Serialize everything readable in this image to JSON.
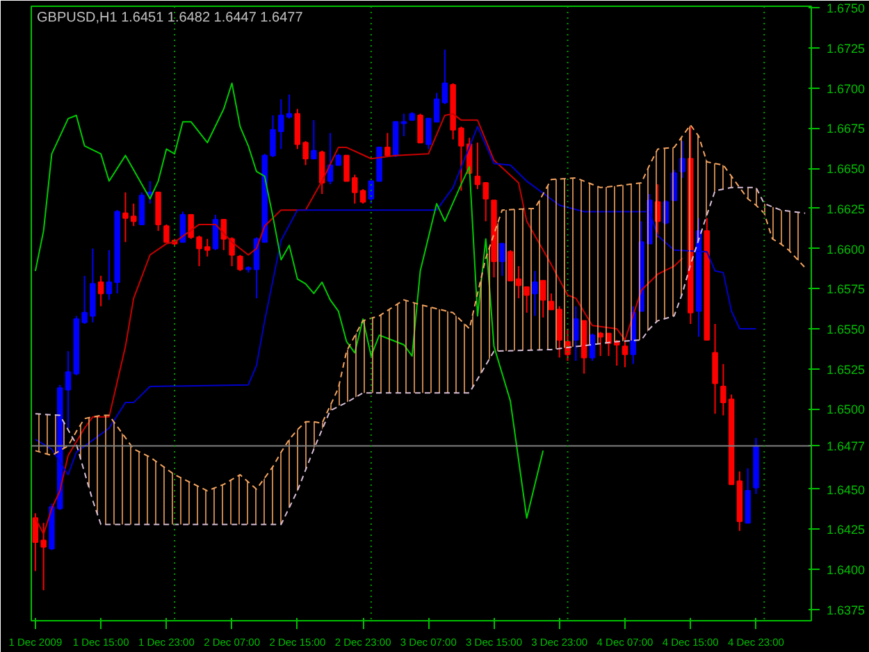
{
  "chart_data": {
    "type": "candlestick",
    "title": "GBPUSD,H1 1.6451 1.6482 1.6447 1.6477",
    "x": [
      "2009-12-01T07:00",
      "2009-12-01T08:00",
      "2009-12-01T09:00",
      "2009-12-01T10:00",
      "2009-12-01T11:00",
      "2009-12-01T12:00",
      "2009-12-01T13:00",
      "2009-12-01T14:00",
      "2009-12-01T15:00",
      "2009-12-01T16:00",
      "2009-12-01T17:00",
      "2009-12-01T18:00",
      "2009-12-01T19:00",
      "2009-12-01T20:00",
      "2009-12-01T21:00",
      "2009-12-01T22:00",
      "2009-12-01T23:00",
      "2009-12-02T00:00",
      "2009-12-02T01:00",
      "2009-12-02T02:00",
      "2009-12-02T03:00",
      "2009-12-02T04:00",
      "2009-12-02T05:00",
      "2009-12-02T06:00",
      "2009-12-02T07:00",
      "2009-12-02T08:00",
      "2009-12-02T09:00",
      "2009-12-02T10:00",
      "2009-12-02T11:00",
      "2009-12-02T12:00",
      "2009-12-02T13:00",
      "2009-12-02T14:00",
      "2009-12-02T15:00",
      "2009-12-02T16:00",
      "2009-12-02T17:00",
      "2009-12-02T18:00",
      "2009-12-02T19:00",
      "2009-12-02T20:00",
      "2009-12-02T21:00",
      "2009-12-02T22:00",
      "2009-12-02T23:00",
      "2009-12-03T00:00",
      "2009-12-03T01:00",
      "2009-12-03T02:00",
      "2009-12-03T03:00",
      "2009-12-03T04:00",
      "2009-12-03T05:00",
      "2009-12-03T06:00",
      "2009-12-03T07:00",
      "2009-12-03T08:00",
      "2009-12-03T09:00",
      "2009-12-03T10:00",
      "2009-12-03T11:00",
      "2009-12-03T12:00",
      "2009-12-03T13:00",
      "2009-12-03T14:00",
      "2009-12-03T15:00",
      "2009-12-03T16:00",
      "2009-12-03T17:00",
      "2009-12-03T18:00",
      "2009-12-03T19:00",
      "2009-12-03T20:00",
      "2009-12-03T21:00",
      "2009-12-03T22:00",
      "2009-12-03T23:00",
      "2009-12-04T00:00",
      "2009-12-04T01:00",
      "2009-12-04T02:00",
      "2009-12-04T03:00",
      "2009-12-04T04:00",
      "2009-12-04T05:00",
      "2009-12-04T06:00",
      "2009-12-04T07:00",
      "2009-12-04T08:00",
      "2009-12-04T09:00",
      "2009-12-04T10:00",
      "2009-12-04T11:00",
      "2009-12-04T12:00",
      "2009-12-04T13:00",
      "2009-12-04T14:00",
      "2009-12-04T15:00",
      "2009-12-04T16:00",
      "2009-12-04T17:00",
      "2009-12-04T18:00",
      "2009-12-04T19:00",
      "2009-12-04T20:00",
      "2009-12-04T21:00",
      "2009-12-04T22:00",
      "2009-12-04T23:00"
    ],
    "ohlc": [
      [
        1.6432,
        1.6435,
        1.6399,
        1.6417
      ],
      [
        1.6418,
        1.6429,
        1.6387,
        1.6414
      ],
      [
        1.6413,
        1.6441,
        1.6412,
        1.6439
      ],
      [
        1.6438,
        1.6515,
        1.6437,
        1.6513
      ],
      [
        1.6512,
        1.6536,
        1.6488,
        1.6523
      ],
      [
        1.6522,
        1.6558,
        1.6521,
        1.6556
      ],
      [
        1.6554,
        1.6583,
        1.6553,
        1.656
      ],
      [
        1.6558,
        1.66,
        1.6554,
        1.6578
      ],
      [
        1.6579,
        1.6583,
        1.6564,
        1.6572
      ],
      [
        1.6572,
        1.6599,
        1.6568,
        1.6579
      ],
      [
        1.6579,
        1.6624,
        1.6572,
        1.6623
      ],
      [
        1.6622,
        1.6635,
        1.6604,
        1.6619
      ],
      [
        1.662,
        1.6628,
        1.6614,
        1.6617
      ],
      [
        1.6615,
        1.6635,
        1.6615,
        1.6633
      ],
      [
        1.6634,
        1.6642,
        1.6628,
        1.6635
      ],
      [
        1.6635,
        1.6635,
        1.6611,
        1.6615
      ],
      [
        1.6614,
        1.6615,
        1.6604,
        1.6604
      ],
      [
        1.6605,
        1.6606,
        1.6602,
        1.6603
      ],
      [
        1.6604,
        1.6623,
        1.6604,
        1.6621
      ],
      [
        1.6621,
        1.6621,
        1.6606,
        1.6607
      ],
      [
        1.6607,
        1.6608,
        1.6589,
        1.66
      ],
      [
        1.6601,
        1.6606,
        1.6595,
        1.6599
      ],
      [
        1.66,
        1.6621,
        1.6599,
        1.6618
      ],
      [
        1.6618,
        1.6618,
        1.6599,
        1.6606
      ],
      [
        1.6606,
        1.6607,
        1.6589,
        1.6596
      ],
      [
        1.6595,
        1.6596,
        1.6586,
        1.6587
      ],
      [
        1.6587,
        1.6589,
        1.6585,
        1.6588
      ],
      [
        1.6587,
        1.6607,
        1.6569,
        1.6606
      ],
      [
        1.6604,
        1.6659,
        1.6604,
        1.6658
      ],
      [
        1.6658,
        1.6683,
        1.6657,
        1.6674
      ],
      [
        1.6673,
        1.6693,
        1.6662,
        1.6683
      ],
      [
        1.6682,
        1.6696,
        1.6681,
        1.6684
      ],
      [
        1.6684,
        1.6687,
        1.6662,
        1.6665
      ],
      [
        1.6666,
        1.6667,
        1.6652,
        1.6656
      ],
      [
        1.6656,
        1.668,
        1.6656,
        1.6661
      ],
      [
        1.666,
        1.6661,
        1.6634,
        1.6641
      ],
      [
        1.6642,
        1.6672,
        1.664,
        1.6652
      ],
      [
        1.6652,
        1.6659,
        1.6652,
        1.6658
      ],
      [
        1.6658,
        1.6658,
        1.6642,
        1.6642
      ],
      [
        1.6644,
        1.6646,
        1.6628,
        1.6635
      ],
      [
        1.6636,
        1.6637,
        1.6628,
        1.6629
      ],
      [
        1.6631,
        1.6642,
        1.6628,
        1.6642
      ],
      [
        1.6642,
        1.6663,
        1.6642,
        1.6663
      ],
      [
        1.6663,
        1.6672,
        1.6657,
        1.6658
      ],
      [
        1.6658,
        1.6679,
        1.6657,
        1.6679
      ],
      [
        1.6678,
        1.6684,
        1.667,
        1.6679
      ],
      [
        1.668,
        1.6685,
        1.668,
        1.6684
      ],
      [
        1.6683,
        1.6684,
        1.6666,
        1.6666
      ],
      [
        1.6665,
        1.6681,
        1.6662,
        1.6681
      ],
      [
        1.6679,
        1.6697,
        1.6679,
        1.6693
      ],
      [
        1.6691,
        1.6724,
        1.669,
        1.6703
      ],
      [
        1.6702,
        1.6703,
        1.6668,
        1.6674
      ],
      [
        1.6675,
        1.6676,
        1.6636,
        1.6664
      ],
      [
        1.6665,
        1.6669,
        1.6646,
        1.6647
      ],
      [
        1.6645,
        1.6666,
        1.6637,
        1.664
      ],
      [
        1.6641,
        1.6641,
        1.6617,
        1.6631
      ],
      [
        1.663,
        1.663,
        1.6582,
        1.6592
      ],
      [
        1.6592,
        1.6603,
        1.6583,
        1.6603
      ],
      [
        1.6598,
        1.6599,
        1.658,
        1.658
      ],
      [
        1.6581,
        1.6589,
        1.6569,
        1.6577
      ],
      [
        1.6576,
        1.6576,
        1.656,
        1.6571
      ],
      [
        1.6572,
        1.6586,
        1.6558,
        1.6579
      ],
      [
        1.658,
        1.658,
        1.6557,
        1.6568
      ],
      [
        1.6567,
        1.6572,
        1.6562,
        1.6562
      ],
      [
        1.6562,
        1.6564,
        1.6532,
        1.6543
      ],
      [
        1.6542,
        1.655,
        1.653,
        1.6534
      ],
      [
        1.6543,
        1.6564,
        1.653,
        1.6556
      ],
      [
        1.6555,
        1.6555,
        1.6522,
        1.6532
      ],
      [
        1.6532,
        1.6547,
        1.653,
        1.6546
      ],
      [
        1.6547,
        1.6548,
        1.6533,
        1.6545
      ],
      [
        1.6547,
        1.6547,
        1.6533,
        1.6541
      ],
      [
        1.6542,
        1.6543,
        1.6527,
        1.654
      ],
      [
        1.6539,
        1.6544,
        1.6526,
        1.6534
      ],
      [
        1.6534,
        1.6564,
        1.6528,
        1.656
      ],
      [
        1.6561,
        1.6617,
        1.6561,
        1.6604
      ],
      [
        1.6603,
        1.6634,
        1.6603,
        1.663
      ],
      [
        1.6629,
        1.664,
        1.6607,
        1.6617
      ],
      [
        1.6616,
        1.663,
        1.6615,
        1.6629
      ],
      [
        1.663,
        1.6649,
        1.663,
        1.6647
      ],
      [
        1.6648,
        1.6667,
        1.6644,
        1.6656
      ],
      [
        1.6656,
        1.6676,
        1.6553,
        1.656
      ],
      [
        1.6561,
        1.6619,
        1.6545,
        1.6611
      ],
      [
        1.6611,
        1.6619,
        1.6543,
        1.6543
      ],
      [
        1.6535,
        1.6553,
        1.6497,
        1.6516
      ],
      [
        1.6514,
        1.6528,
        1.6496,
        1.6504
      ],
      [
        1.6506,
        1.6509,
        1.6453,
        1.6453
      ],
      [
        1.6455,
        1.6461,
        1.6424,
        1.643
      ],
      [
        1.6429,
        1.6463,
        1.6429,
        1.6449
      ],
      [
        1.6451,
        1.6482,
        1.6447,
        1.6477
      ]
    ],
    "colors": [
      "#ff0000",
      "#ff0000",
      "#0000ff",
      "#0000ff",
      "#0000ff",
      "#0000ff",
      "#0000ff",
      "#0000ff",
      "#ff0000",
      "#0000ff",
      "#0000ff",
      "#ff0000",
      "#ff0000",
      "#0000ff",
      "#0000ff",
      "#ff0000",
      "#ff0000",
      "#ff0000",
      "#0000ff",
      "#ff0000",
      "#ff0000",
      "#ff0000",
      "#0000ff",
      "#ff0000",
      "#ff0000",
      "#ff0000",
      "#0000ff",
      "#0000ff",
      "#0000ff",
      "#0000ff",
      "#0000ff",
      "#0000ff",
      "#ff0000",
      "#ff0000",
      "#0000ff",
      "#ff0000",
      "#0000ff",
      "#0000ff",
      "#ff0000",
      "#ff0000",
      "#ff0000",
      "#0000ff",
      "#0000ff",
      "#ff0000",
      "#0000ff",
      "#0000ff",
      "#0000ff",
      "#ff0000",
      "#0000ff",
      "#0000ff",
      "#0000ff",
      "#ff0000",
      "#ff0000",
      "#ff0000",
      "#ff0000",
      "#ff0000",
      "#ff0000",
      "#0000ff",
      "#ff0000",
      "#ff0000",
      "#ff0000",
      "#0000ff",
      "#ff0000",
      "#ff0000",
      "#ff0000",
      "#ff0000",
      "#0000ff",
      "#ff0000",
      "#0000ff",
      "#ff0000",
      "#ff0000",
      "#ff0000",
      "#ff0000",
      "#0000ff",
      "#0000ff",
      "#0000ff",
      "#ff0000",
      "#0000ff",
      "#0000ff",
      "#0000ff",
      "#ff0000",
      "#0000ff",
      "#ff0000",
      "#ff0000",
      "#ff0000",
      "#ff0000",
      "#ff0000",
      "#0000ff",
      "#0000ff"
    ],
    "series": [
      {
        "type": "line",
        "color": "#cc0000",
        "line_style": "solid",
        "x": [
          "2009-12-01T07:00",
          "2009-12-01T08:00",
          "2009-12-01T09:00",
          "2009-12-01T10:00",
          "2009-12-01T11:00",
          "2009-12-01T13:00",
          "2009-12-01T14:00",
          "2009-12-01T16:00",
          "2009-12-01T18:00",
          "2009-12-01T19:00",
          "2009-12-01T21:00",
          "2009-12-01T23:00",
          "2009-12-02T00:00",
          "2009-12-02T03:00",
          "2009-12-02T05:00",
          "2009-12-02T07:00",
          "2009-12-02T08:00",
          "2009-12-02T09:00",
          "2009-12-02T10:00",
          "2009-12-02T11:00",
          "2009-12-02T13:00",
          "2009-12-02T16:00",
          "2009-12-02T18:00",
          "2009-12-02T20:00",
          "2009-12-02T21:00",
          "2009-12-03T00:00",
          "2009-12-03T03:00",
          "2009-12-03T07:00",
          "2009-12-03T09:00",
          "2009-12-03T10:00",
          "2009-12-03T11:00",
          "2009-12-03T13:00",
          "2009-12-03T15:00",
          "2009-12-03T18:00",
          "2009-12-03T19:00",
          "2009-12-03T22:00",
          "2009-12-04T00:00",
          "2009-12-04T01:00",
          "2009-12-04T03:00",
          "2009-12-04T06:00",
          "2009-12-04T07:00",
          "2009-12-04T09:00",
          "2009-12-04T11:00",
          "2009-12-04T13:00",
          "2009-12-04T14:00"
        ],
        "values": [
          1.6432,
          1.6422,
          1.6438,
          1.6449,
          1.6471,
          1.6488,
          1.6495,
          1.6495,
          1.6539,
          1.6569,
          1.6596,
          1.6603,
          1.6604,
          1.6615,
          1.6615,
          1.6604,
          1.66,
          1.6596,
          1.66,
          1.6614,
          1.6624,
          1.6624,
          1.6642,
          1.6663,
          1.6663,
          1.6656,
          1.6658,
          1.6659,
          1.6683,
          1.6684,
          1.668,
          1.668,
          1.6655,
          1.6641,
          1.6617,
          1.659,
          1.6571,
          1.6569,
          1.6552,
          1.655,
          1.6543,
          1.6574,
          1.6584,
          1.6589,
          1.6594
        ]
      },
      {
        "type": "line",
        "color": "#0000cc",
        "line_style": "solid",
        "x": [
          "2009-12-01T07:00",
          "2009-12-01T09:00",
          "2009-12-01T11:00",
          "2009-12-01T12:00",
          "2009-12-01T16:00",
          "2009-12-01T18:00",
          "2009-12-01T19:00",
          "2009-12-01T21:00",
          "2009-12-02T09:00",
          "2009-12-02T10:00",
          "2009-12-02T11:00",
          "2009-12-02T13:00",
          "2009-12-02T15:00",
          "2009-12-03T08:00",
          "2009-12-03T10:00",
          "2009-12-03T13:00",
          "2009-12-03T15:00",
          "2009-12-03T17:00",
          "2009-12-03T19:00",
          "2009-12-03T23:00",
          "2009-12-04T02:00",
          "2009-12-04T10:00",
          "2009-12-04T11:00",
          "2009-12-04T13:00",
          "2009-12-04T17:00",
          "2009-12-04T18:00",
          "2009-12-04T19:00",
          "2009-12-04T20:00",
          "2009-12-04T21:00",
          "2009-12-04T23:00"
        ],
        "values": [
          1.6481,
          1.6475,
          1.6459,
          1.6473,
          1.6488,
          1.6504,
          1.6504,
          1.6514,
          1.6515,
          1.6527,
          1.6555,
          1.6605,
          1.6624,
          1.6624,
          1.6638,
          1.6676,
          1.6653,
          1.6652,
          1.6642,
          1.6627,
          1.6623,
          1.6623,
          1.6608,
          1.6599,
          1.6598,
          1.6586,
          1.6585,
          1.6561,
          1.655,
          1.655
        ]
      },
      {
        "type": "line",
        "color": "#00cc00",
        "line_style": "solid",
        "x": [
          "2009-12-01T07:00",
          "2009-12-01T08:00",
          "2009-12-01T09:00",
          "2009-12-01T11:00",
          "2009-12-01T12:00",
          "2009-12-01T13:00",
          "2009-12-01T15:00",
          "2009-12-01T16:00",
          "2009-12-01T18:00",
          "2009-12-01T20:00",
          "2009-12-01T21:00",
          "2009-12-01T22:00",
          "2009-12-01T23:00",
          "2009-12-02T00:00",
          "2009-12-02T01:00",
          "2009-12-02T02:00",
          "2009-12-02T04:00",
          "2009-12-02T06:00",
          "2009-12-02T07:00",
          "2009-12-02T08:00",
          "2009-12-02T09:00",
          "2009-12-02T10:00",
          "2009-12-02T11:00",
          "2009-12-02T12:00",
          "2009-12-02T13:00",
          "2009-12-02T14:00",
          "2009-12-02T15:00",
          "2009-12-02T16:00",
          "2009-12-02T17:00",
          "2009-12-02T18:00",
          "2009-12-02T19:00",
          "2009-12-02T20:00",
          "2009-12-02T21:00",
          "2009-12-02T22:00",
          "2009-12-02T23:00",
          "2009-12-03T00:00",
          "2009-12-03T01:00",
          "2009-12-03T02:00",
          "2009-12-03T04:00",
          "2009-12-03T05:00",
          "2009-12-03T06:00",
          "2009-12-03T08:00",
          "2009-12-03T09:00",
          "2009-12-03T11:00",
          "2009-12-03T12:00",
          "2009-12-03T13:00",
          "2009-12-03T14:00",
          "2009-12-03T15:00",
          "2009-12-03T17:00",
          "2009-12-03T19:00",
          "2009-12-03T21:00"
        ],
        "values": [
          1.6586,
          1.6611,
          1.6659,
          1.6681,
          1.6683,
          1.6664,
          1.6659,
          1.6642,
          1.6658,
          1.664,
          1.6631,
          1.6642,
          1.6662,
          1.6659,
          1.6679,
          1.6679,
          1.6666,
          1.6687,
          1.6703,
          1.6676,
          1.6664,
          1.6648,
          1.6645,
          1.662,
          1.6593,
          1.6602,
          1.6581,
          1.6578,
          1.6572,
          1.6579,
          1.6568,
          1.6561,
          1.6542,
          1.6535,
          1.6556,
          1.6533,
          1.6546,
          1.6544,
          1.654,
          1.6533,
          1.6586,
          1.6628,
          1.6617,
          1.664,
          1.6651,
          1.6558,
          1.6606,
          1.6539,
          1.6505,
          1.6432,
          1.6474
        ]
      },
      {
        "type": "line",
        "color": "#f4a460",
        "line_style": "dashed",
        "x": [
          "2009-12-01T07:00",
          "2009-12-01T09:00",
          "2009-12-01T10:00",
          "2009-12-01T11:00",
          "2009-12-01T12:00",
          "2009-12-01T13:00",
          "2009-12-01T14:00",
          "2009-12-01T15:00",
          "2009-12-01T16:00",
          "2009-12-01T19:00",
          "2009-12-01T21:00",
          "2009-12-02T00:00",
          "2009-12-02T04:00",
          "2009-12-02T06:00",
          "2009-12-02T08:00",
          "2009-12-02T10:00",
          "2009-12-02T12:00",
          "2009-12-02T13:00",
          "2009-12-02T14:00",
          "2009-12-02T15:00",
          "2009-12-02T16:00",
          "2009-12-02T17:00",
          "2009-12-02T18:00",
          "2009-12-02T19:00",
          "2009-12-02T20:00",
          "2009-12-02T21:00",
          "2009-12-02T23:00",
          "2009-12-03T01:00",
          "2009-12-03T04:00",
          "2009-12-03T06:00",
          "2009-12-03T10:00",
          "2009-12-03T12:00",
          "2009-12-03T13:00",
          "2009-12-03T14:00",
          "2009-12-03T15:00",
          "2009-12-03T16:00",
          "2009-12-03T20:00",
          "2009-12-03T22:00",
          "2009-12-04T01:00",
          "2009-12-04T04:00",
          "2009-12-04T06:00",
          "2009-12-04T09:00",
          "2009-12-04T10:00",
          "2009-12-04T11:00",
          "2009-12-04T13:00",
          "2009-12-04T14:00",
          "2009-12-04T15:00",
          "2009-12-04T16:00",
          "2009-12-04T17:00",
          "2009-12-04T18:00",
          "2009-12-04T19:00",
          "2009-12-04T20:00",
          "2009-12-04T22:00",
          "2009-12-04T23:00",
          "2009-12-05T00:00",
          "2009-12-05T01:00",
          "2009-12-05T02:00",
          "2009-12-05T03:00",
          "2009-12-05T05:00"
        ],
        "values": [
          1.6474,
          1.6471,
          1.6474,
          1.6477,
          1.6486,
          1.6494,
          1.6495,
          1.6496,
          1.6496,
          1.6475,
          1.647,
          1.6459,
          1.6449,
          1.6453,
          1.6459,
          1.645,
          1.6464,
          1.6473,
          1.6481,
          1.6487,
          1.6492,
          1.6492,
          1.6491,
          1.6502,
          1.6513,
          1.6536,
          1.6555,
          1.6558,
          1.6568,
          1.6565,
          1.656,
          1.655,
          1.6572,
          1.6594,
          1.6609,
          1.6624,
          1.6625,
          1.6643,
          1.6644,
          1.6638,
          1.6639,
          1.6641,
          1.6652,
          1.6662,
          1.6663,
          1.667,
          1.6677,
          1.667,
          1.6654,
          1.6653,
          1.6652,
          1.6645,
          1.6631,
          1.6627,
          1.6622,
          1.6606,
          1.6603,
          1.6599,
          1.6588
        ],
        "upper": [
          1.6474,
          1.6471,
          1.6474,
          1.6477,
          1.6486,
          1.6494,
          1.6495,
          1.6496,
          1.6496,
          1.6475,
          1.647,
          1.6459,
          1.6449,
          1.6453,
          1.6459,
          1.645,
          1.6464,
          1.6473,
          1.6481,
          1.6487,
          1.6492,
          1.6492,
          1.6491,
          1.6502,
          1.6513,
          1.6536,
          1.6555,
          1.6558,
          1.6568,
          1.6565,
          1.656,
          1.655,
          1.6572,
          1.6594,
          1.6609,
          1.6624,
          1.6625,
          1.6643,
          1.6644,
          1.6638,
          1.6639,
          1.6641,
          1.6652,
          1.6662,
          1.6663,
          1.667,
          1.6677,
          1.667,
          1.6654,
          1.6653,
          1.6652,
          1.6645,
          1.6631,
          1.6627,
          1.6622,
          1.6606,
          1.6603,
          1.6599,
          1.6588
        ],
        "lower": [
          1.6497,
          1.6496,
          1.6496,
          1.6487,
          1.6478,
          1.6461,
          1.6443,
          1.6428,
          1.6428,
          1.6428,
          1.6428,
          1.6428,
          1.6428,
          1.6428,
          1.6428,
          1.6428,
          1.6428,
          1.6428,
          1.6439,
          1.6449,
          1.6462,
          1.6475,
          1.6487,
          1.6499,
          1.6502,
          1.6504,
          1.651,
          1.651,
          1.651,
          1.651,
          1.651,
          1.651,
          1.6519,
          1.6527,
          1.6536,
          1.6536,
          1.6537,
          1.6537,
          1.6539,
          1.6541,
          1.6542,
          1.6543,
          1.655,
          1.6555,
          1.6558,
          1.6572,
          1.659,
          1.6606,
          1.6621,
          1.6636,
          1.6637,
          1.6638,
          1.6638,
          1.6638,
          1.6628,
          1.6626,
          1.6624,
          1.6623,
          1.6622
        ]
      },
      {
        "type": "line",
        "color": "#d8bfd8",
        "line_style": "dashed",
        "x": [
          "2009-12-01T07:00",
          "2009-12-01T10:00",
          "2009-12-01T12:00",
          "2009-12-01T14:00",
          "2009-12-01T15:00",
          "2009-12-02T13:00",
          "2009-12-02T15:00",
          "2009-12-02T17:00",
          "2009-12-02T19:00",
          "2009-12-02T21:00",
          "2009-12-02T23:00",
          "2009-12-03T12:00",
          "2009-12-03T15:00",
          "2009-12-03T22:00",
          "2009-12-04T06:00",
          "2009-12-04T09:00",
          "2009-12-04T10:00",
          "2009-12-04T11:00",
          "2009-12-04T13:00",
          "2009-12-04T14:00",
          "2009-12-04T15:00",
          "2009-12-04T17:00",
          "2009-12-04T18:00",
          "2009-12-04T20:00",
          "2009-12-04T23:00",
          "2009-12-05T00:00",
          "2009-12-05T02:00",
          "2009-12-05T05:00"
        ],
        "values": [
          1.6497,
          1.6496,
          1.6478,
          1.6443,
          1.6428,
          1.6428,
          1.6449,
          1.6475,
          1.6499,
          1.6504,
          1.651,
          1.651,
          1.6536,
          1.6537,
          1.6542,
          1.6543,
          1.655,
          1.6555,
          1.6558,
          1.6572,
          1.659,
          1.6621,
          1.6636,
          1.6638,
          1.6638,
          1.6628,
          1.6624,
          1.6622
        ]
      }
    ],
    "xlim": [
      "2009-12-01T06:30",
      "2009-12-05T05:45"
    ],
    "xticks": [
      {
        "value": "2009-12-01T07:00",
        "label": "1 Dec 2009"
      },
      {
        "value": "2009-12-01T15:00",
        "label": "1 Dec 15:00"
      },
      {
        "value": "2009-12-01T23:00",
        "label": "1 Dec 23:00"
      },
      {
        "value": "2009-12-02T07:00",
        "label": "2 Dec 07:00"
      },
      {
        "value": "2009-12-02T15:00",
        "label": "2 Dec 15:00"
      },
      {
        "value": "2009-12-02T23:00",
        "label": "2 Dec 23:00"
      },
      {
        "value": "2009-12-03T07:00",
        "label": "3 Dec 07:00"
      },
      {
        "value": "2009-12-03T15:00",
        "label": "3 Dec 15:00"
      },
      {
        "value": "2009-12-03T23:00",
        "label": "3 Dec 23:00"
      },
      {
        "value": "2009-12-04T07:00",
        "label": "4 Dec 07:00"
      },
      {
        "value": "2009-12-04T15:00",
        "label": "4 Dec 15:00"
      },
      {
        "value": "2009-12-04T23:00",
        "label": "4 Dec 23:00"
      }
    ],
    "ylim": [
      1.6368,
      1.6751
    ],
    "yticks": [
      {
        "value": 1.6375,
        "label": "1.6375"
      },
      {
        "value": 1.64,
        "label": "1.6400"
      },
      {
        "value": 1.6425,
        "label": "1.6425"
      },
      {
        "value": 1.645,
        "label": "1.6450"
      },
      {
        "value": 1.65,
        "label": "1.6500"
      },
      {
        "value": 1.6525,
        "label": "1.6525"
      },
      {
        "value": 1.655,
        "label": "1.6550"
      },
      {
        "value": 1.6575,
        "label": "1.6575"
      },
      {
        "value": 1.66,
        "label": "1.6600"
      },
      {
        "value": 1.6625,
        "label": "1.6625"
      },
      {
        "value": 1.665,
        "label": "1.6650"
      },
      {
        "value": 1.6675,
        "label": "1.6675"
      },
      {
        "value": 1.67,
        "label": "1.6700"
      },
      {
        "value": 1.6725,
        "label": "1.6725"
      },
      {
        "value": 1.675,
        "label": "1.6750"
      }
    ],
    "ref_lines": [
      {
        "axis": "y",
        "value": 1.6477,
        "label": "1.6477",
        "color": "#808080",
        "line_style": "solid"
      },
      {
        "axis": "x",
        "value": "2009-12-02T00:00",
        "color": "#00a000",
        "line_style": "dotted"
      },
      {
        "axis": "x",
        "value": "2009-12-03T00:00",
        "color": "#00a000",
        "line_style": "dotted"
      },
      {
        "axis": "x",
        "value": "2009-12-04T00:00",
        "color": "#00a000",
        "line_style": "dotted"
      },
      {
        "axis": "x",
        "value": "2009-12-05T00:00",
        "color": "#00a000",
        "line_style": "dotted"
      }
    ],
    "grid": false
  }
}
